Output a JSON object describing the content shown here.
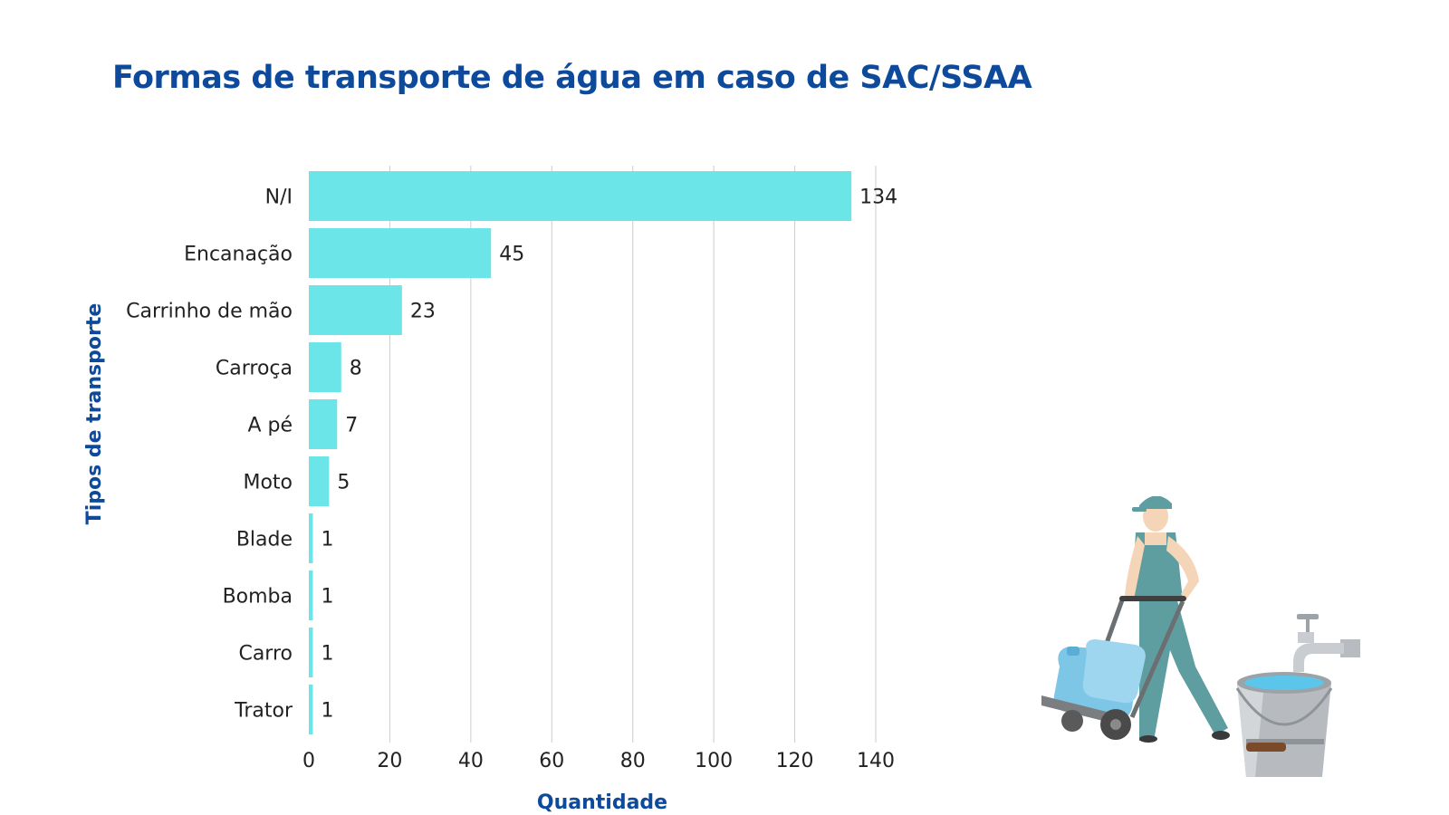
{
  "title": "Formas de transporte de água em caso de SAC/SSAA",
  "colors": {
    "title": "#0d4a9b",
    "bar": "#6ce5e8",
    "grid": "#cccccc",
    "text": "#222222"
  },
  "illustration": {
    "icon": "worker-pushing-water-jug-cart-with-faucet-and-bucket-icon"
  },
  "chart_data": {
    "type": "bar",
    "orientation": "horizontal",
    "categories": [
      "N/I",
      "Encanação",
      "Carrinho de mão",
      "Carroça",
      "A pé",
      "Moto",
      "Blade",
      "Bomba",
      "Carro",
      "Trator"
    ],
    "values": [
      134,
      45,
      23,
      8,
      7,
      5,
      1,
      1,
      1,
      1
    ],
    "xlabel": "Quantidade",
    "ylabel": "Tipos de transporte",
    "xlim": [
      0,
      140
    ],
    "xticks": [
      0,
      20,
      40,
      60,
      80,
      100,
      120,
      140
    ],
    "grid": "vertical",
    "data_labels": true,
    "legend": "none"
  }
}
